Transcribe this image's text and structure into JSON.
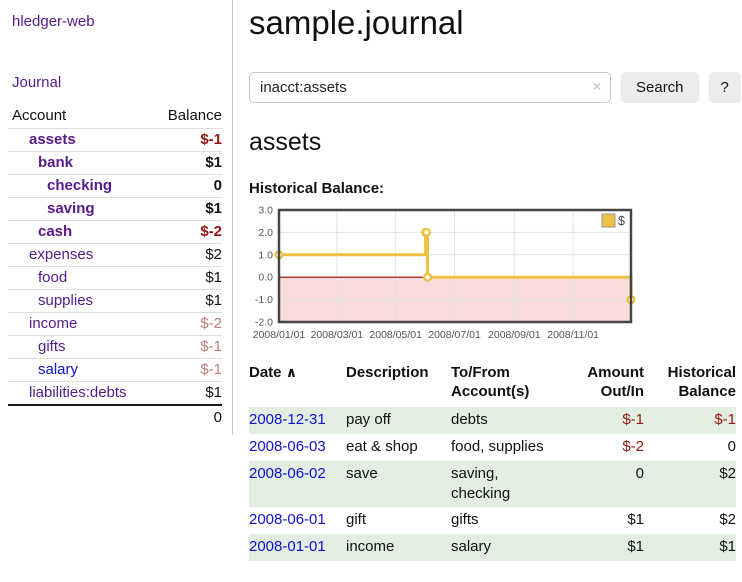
{
  "app": {
    "title": "hledger-web"
  },
  "colors": {
    "link_purple": "#551a8b",
    "link_blue": "#0f0fd6",
    "neg_strong": "#991414",
    "neg_muted": "#bd7b7b",
    "row_green": "#e1eee1",
    "series_gold": "#edc240",
    "zero_line": "#8b0000",
    "negative_region": "#fadcdc",
    "chart_border": "#454545",
    "grid_line": "#e2e2e2",
    "button_bg": "#ececec",
    "border_light": "#cccccc"
  },
  "sidebar": {
    "journal_link": "Journal",
    "accounts_table": {
      "headers": [
        "Account",
        "Balance"
      ],
      "rows": [
        {
          "account": "assets",
          "balance": "$-1",
          "level": 0,
          "bold": true,
          "balance_style": "neg-strong",
          "link_color": "purple"
        },
        {
          "account": "bank",
          "balance": "$1",
          "level": 1,
          "bold": true,
          "balance_style": "pos",
          "link_color": "purple"
        },
        {
          "account": "checking",
          "balance": "0",
          "level": 2,
          "bold": true,
          "balance_style": "pos",
          "link_color": "purple"
        },
        {
          "account": "saving",
          "balance": "$1",
          "level": 2,
          "bold": true,
          "balance_style": "pos",
          "link_color": "purple"
        },
        {
          "account": "cash",
          "balance": "$-2",
          "level": 1,
          "bold": true,
          "balance_style": "neg-strong",
          "link_color": "purple"
        },
        {
          "account": "expenses",
          "balance": "$2",
          "level": 0,
          "bold": false,
          "balance_style": "pos",
          "link_color": "purple"
        },
        {
          "account": "food",
          "balance": "$1",
          "level": 1,
          "bold": false,
          "balance_style": "pos",
          "link_color": "purple"
        },
        {
          "account": "supplies",
          "balance": "$1",
          "level": 1,
          "bold": false,
          "balance_style": "pos",
          "link_color": "purple"
        },
        {
          "account": "income",
          "balance": "$-2",
          "level": 0,
          "bold": false,
          "balance_style": "neg-muted",
          "link_color": "purple"
        },
        {
          "account": "gifts",
          "balance": "$-1",
          "level": 1,
          "bold": false,
          "balance_style": "neg-muted",
          "link_color": "purple"
        },
        {
          "account": "salary",
          "balance": "$-1",
          "level": 1,
          "bold": false,
          "balance_style": "neg-muted",
          "link_color": "blue"
        },
        {
          "account": "liabilities:debts",
          "balance": "$1",
          "level": 0,
          "bold": false,
          "balance_style": "pos",
          "link_color": "purple"
        }
      ],
      "total": "0"
    }
  },
  "header": {
    "title": "sample.journal"
  },
  "search": {
    "value": "inacct:assets",
    "clear_icon": "×",
    "button_label": "Search",
    "help_label": "?"
  },
  "account_page": {
    "heading": "assets",
    "chart_label": "Historical Balance:"
  },
  "chart_data": {
    "type": "line",
    "title": "Historical Balance:",
    "series": [
      {
        "name": "$",
        "color": "#edc240",
        "step": true,
        "points": [
          {
            "date": "2008-01-01",
            "value": 1
          },
          {
            "date": "2008-06-01",
            "value": 2
          },
          {
            "date": "2008-06-02",
            "value": 2
          },
          {
            "date": "2008-06-03",
            "value": 0
          },
          {
            "date": "2008-12-31",
            "value": -1
          }
        ]
      }
    ],
    "xlim": [
      "2008-01-01",
      "2008-12-31"
    ],
    "ylim": [
      -2.0,
      3.0
    ],
    "y_ticks": [
      3.0,
      2.0,
      1.0,
      0.0,
      -1.0,
      -2.0
    ],
    "x_ticks": [
      "2008/01/01",
      "2008/03/01",
      "2008/05/01",
      "2008/07/01",
      "2008/09/01",
      "2008/11/01"
    ],
    "legend": {
      "label": "$",
      "position": "top-right"
    },
    "grid": true
  },
  "register_table": {
    "headers": {
      "date": "Date",
      "sort_icon": "∧",
      "description": "Description",
      "accounts": "To/From Account(s)",
      "amount": "Amount Out/In",
      "balance": "Historical Balance"
    },
    "rows": [
      {
        "date": "2008-12-31",
        "description": "pay off",
        "accounts": "debts",
        "amount": "$-1",
        "amount_neg": true,
        "balance": "$-1",
        "balance_neg": true
      },
      {
        "date": "2008-06-03",
        "description": "eat & shop",
        "accounts": "food, supplies",
        "amount": "$-2",
        "amount_neg": true,
        "balance": "0",
        "balance_neg": false
      },
      {
        "date": "2008-06-02",
        "description": "save",
        "accounts": "saving, checking",
        "amount": "0",
        "amount_neg": false,
        "balance": "$2",
        "balance_neg": false
      },
      {
        "date": "2008-06-01",
        "description": "gift",
        "accounts": "gifts",
        "amount": "$1",
        "amount_neg": false,
        "balance": "$2",
        "balance_neg": false
      },
      {
        "date": "2008-01-01",
        "description": "income",
        "accounts": "salary",
        "amount": "$1",
        "amount_neg": false,
        "balance": "$1",
        "balance_neg": false
      }
    ]
  }
}
